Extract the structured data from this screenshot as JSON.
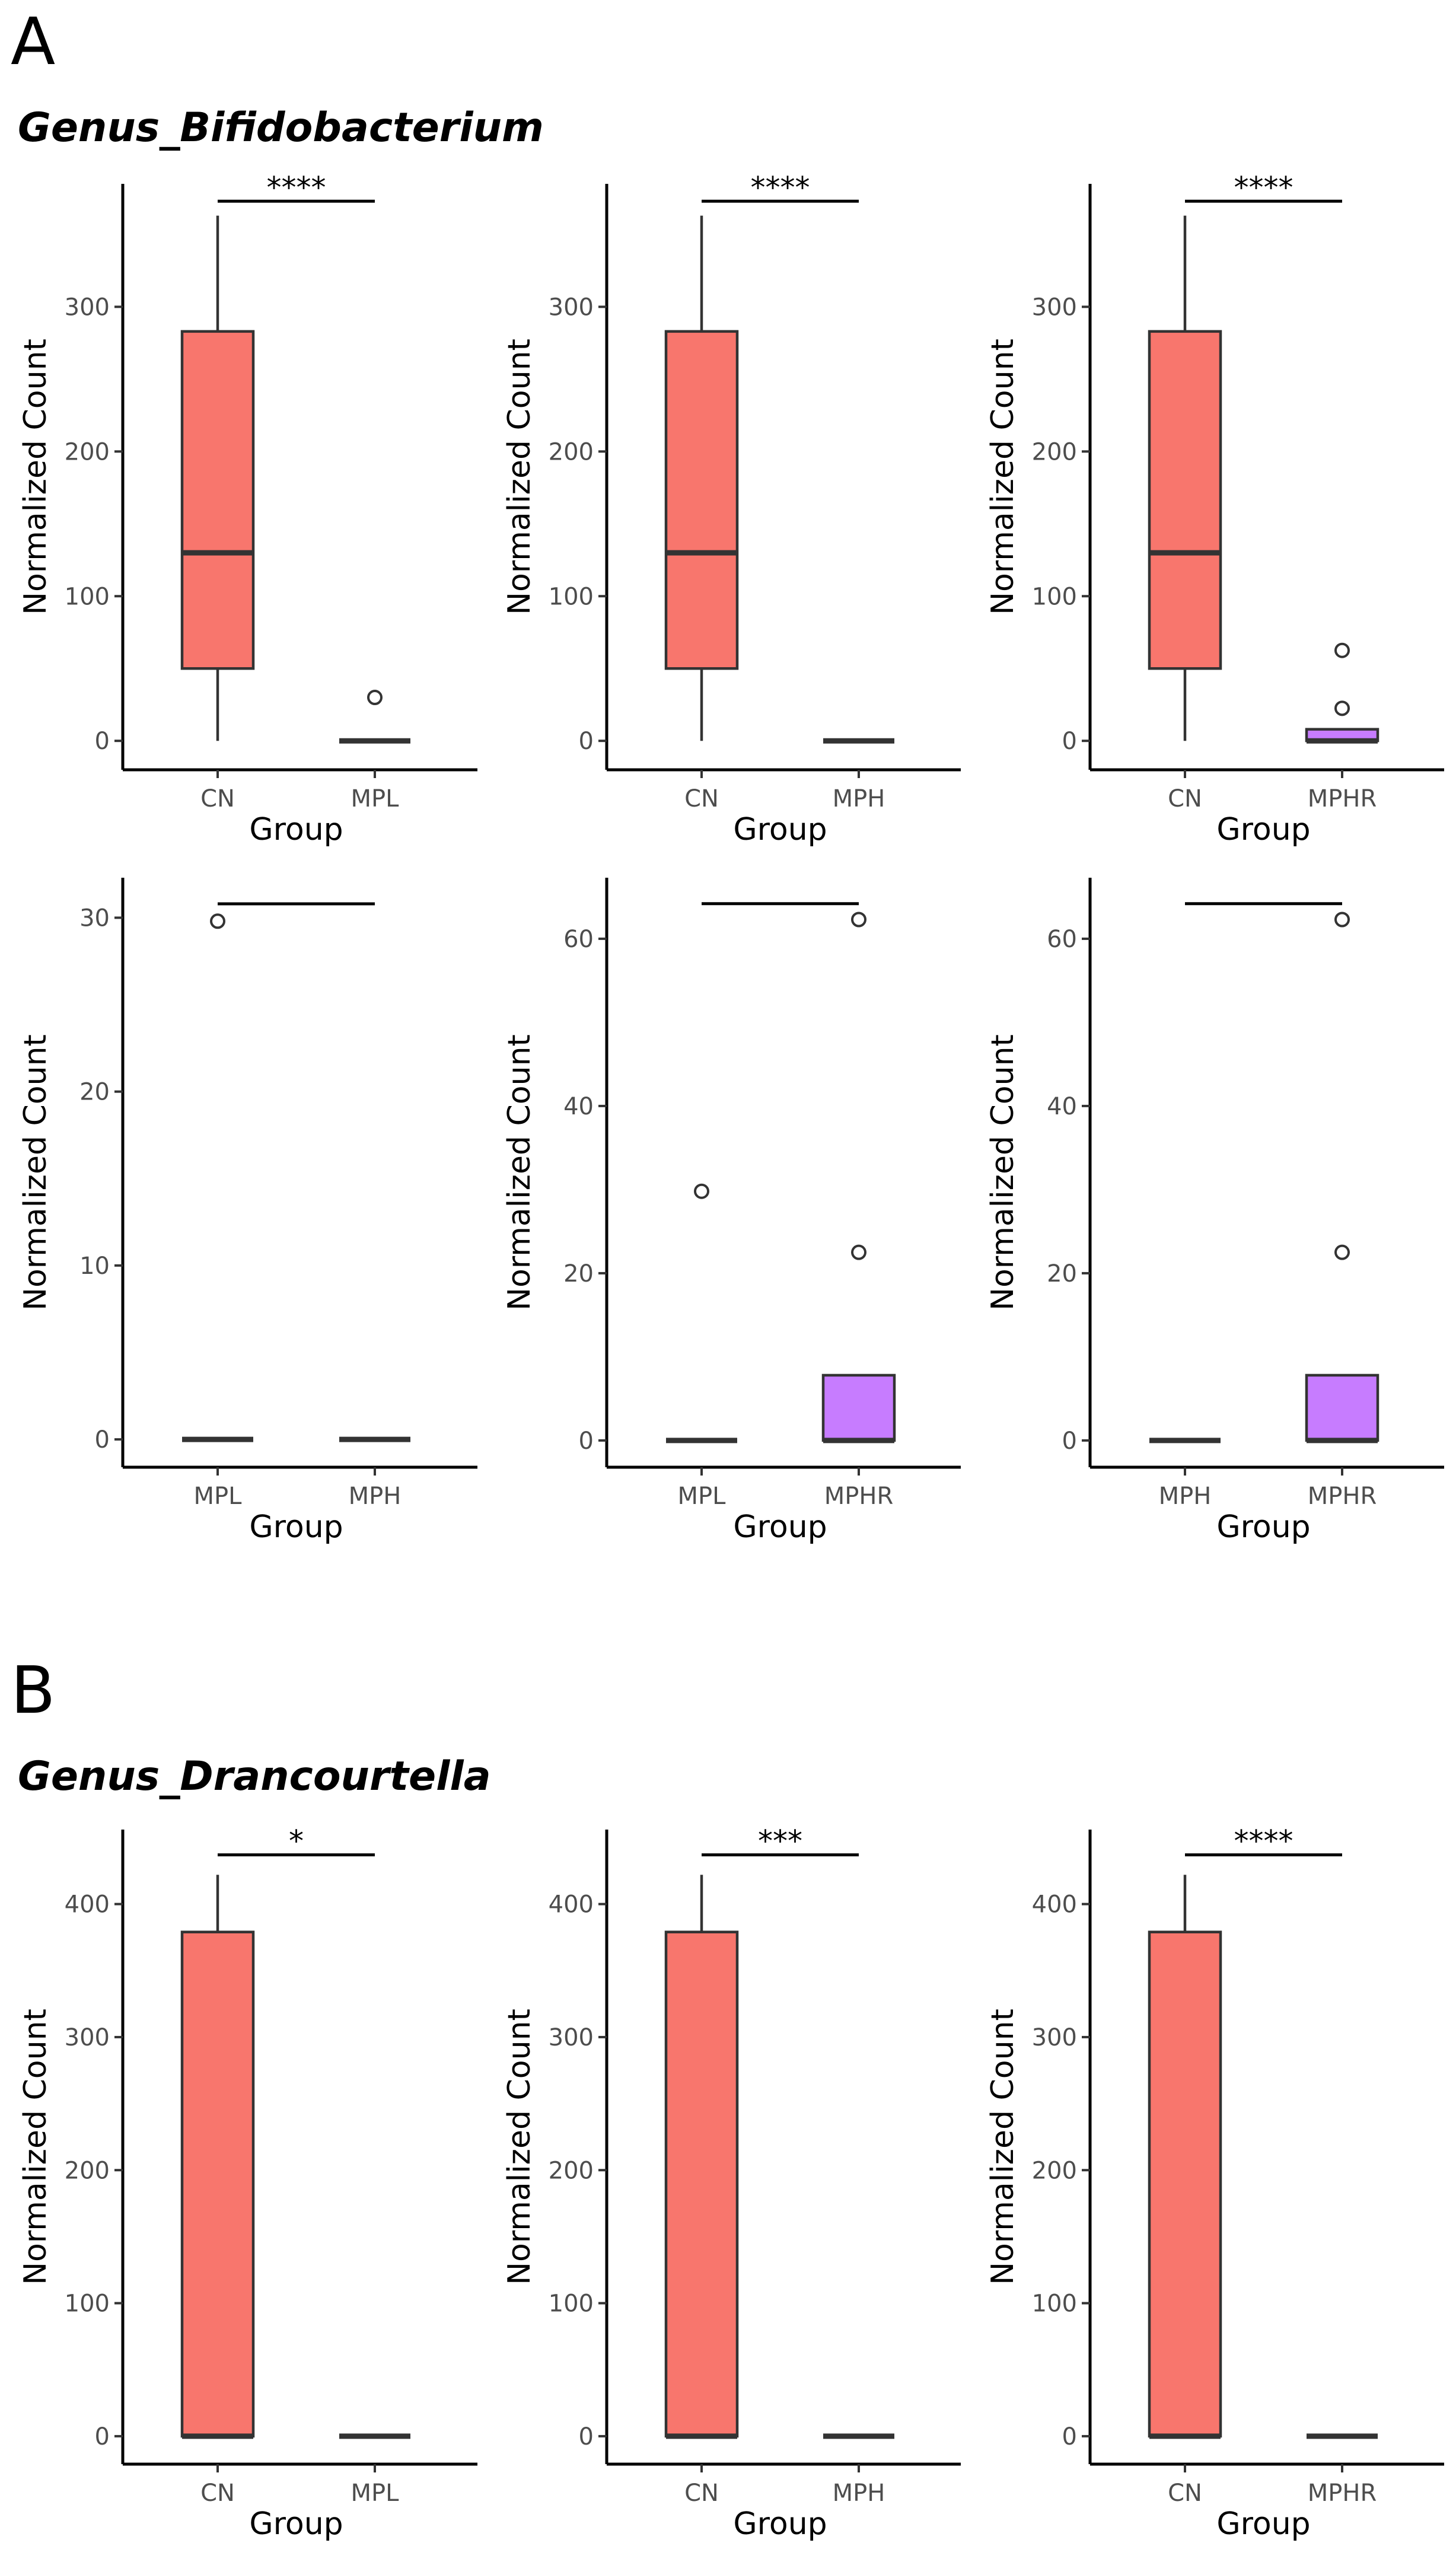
{
  "figure": {
    "sections": [
      {
        "letter": "A",
        "title": "Genus_Bifidobacterium"
      },
      {
        "letter": "B",
        "title": "Genus_Drancourtella"
      }
    ]
  },
  "colors": {
    "CN": "#F8766D",
    "MPL": "#F8766D",
    "MPH": "#F8766D",
    "MPHR": "#C77CFF"
  },
  "chart_data": [
    {
      "type": "box",
      "section": "A",
      "title": "Genus_Bifidobacterium",
      "xlabel": "Group",
      "ylabel": "Normalized Count",
      "categories": [
        "CN",
        "MPL"
      ],
      "ylim": [
        -20,
        385
      ],
      "yticks": [
        0,
        100,
        200,
        300
      ],
      "boxes": [
        {
          "group": "CN",
          "lower_whisker": 0,
          "q1": 50,
          "median": 130,
          "q3": 283,
          "upper_whisker": 363,
          "outliers": []
        },
        {
          "group": "MPL",
          "lower_whisker": 0,
          "q1": 0,
          "median": 0,
          "q3": 0,
          "upper_whisker": 0,
          "outliers": [
            30
          ]
        }
      ],
      "significance": {
        "label": "****",
        "value": 373
      }
    },
    {
      "type": "box",
      "section": "A",
      "title": "Genus_Bifidobacterium",
      "xlabel": "Group",
      "ylabel": "Normalized Count",
      "categories": [
        "CN",
        "MPH"
      ],
      "ylim": [
        -20,
        385
      ],
      "yticks": [
        0,
        100,
        200,
        300
      ],
      "boxes": [
        {
          "group": "CN",
          "lower_whisker": 0,
          "q1": 50,
          "median": 130,
          "q3": 283,
          "upper_whisker": 363,
          "outliers": []
        },
        {
          "group": "MPH",
          "lower_whisker": 0,
          "q1": 0,
          "median": 0,
          "q3": 0,
          "upper_whisker": 0,
          "outliers": []
        }
      ],
      "significance": {
        "label": "****",
        "value": 373
      }
    },
    {
      "type": "box",
      "section": "A",
      "title": "Genus_Bifidobacterium",
      "xlabel": "Group",
      "ylabel": "Normalized Count",
      "categories": [
        "CN",
        "MPHR"
      ],
      "ylim": [
        -20,
        385
      ],
      "yticks": [
        0,
        100,
        200,
        300
      ],
      "boxes": [
        {
          "group": "CN",
          "lower_whisker": 0,
          "q1": 50,
          "median": 130,
          "q3": 283,
          "upper_whisker": 363,
          "outliers": []
        },
        {
          "group": "MPHR",
          "lower_whisker": 0,
          "q1": 0,
          "median": 0,
          "q3": 8,
          "upper_whisker": 8,
          "outliers": [
            22.5,
            62.5
          ]
        }
      ],
      "significance": {
        "label": "****",
        "value": 373
      }
    },
    {
      "type": "box",
      "section": "A",
      "title": "Genus_Bifidobacterium",
      "xlabel": "Group",
      "ylabel": "Normalized Count",
      "categories": [
        "MPL",
        "MPH"
      ],
      "ylim": [
        -1.6,
        32.3
      ],
      "yticks": [
        0,
        10,
        20,
        30
      ],
      "boxes": [
        {
          "group": "MPL",
          "lower_whisker": 0,
          "q1": 0,
          "median": 0,
          "q3": 0,
          "upper_whisker": 0,
          "outliers": [
            29.8
          ]
        },
        {
          "group": "MPH",
          "lower_whisker": 0,
          "q1": 0,
          "median": 0,
          "q3": 0,
          "upper_whisker": 0,
          "outliers": []
        }
      ],
      "significance": {
        "label": "",
        "value": 30.8
      }
    },
    {
      "type": "box",
      "section": "A",
      "title": "Genus_Bifidobacterium",
      "xlabel": "Group",
      "ylabel": "Normalized Count",
      "categories": [
        "MPL",
        "MPHR"
      ],
      "ylim": [
        -3.2,
        67.3
      ],
      "yticks": [
        0,
        20,
        40,
        60
      ],
      "boxes": [
        {
          "group": "MPL",
          "lower_whisker": 0,
          "q1": 0,
          "median": 0,
          "q3": 0,
          "upper_whisker": 0,
          "outliers": [
            29.8
          ]
        },
        {
          "group": "MPHR",
          "lower_whisker": 0,
          "q1": 0,
          "median": 0,
          "q3": 7.8,
          "upper_whisker": 7.8,
          "outliers": [
            22.5,
            62.3
          ]
        }
      ],
      "significance": {
        "label": "",
        "value": 64.2
      }
    },
    {
      "type": "box",
      "section": "A",
      "title": "Genus_Bifidobacterium",
      "xlabel": "Group",
      "ylabel": "Normalized Count",
      "categories": [
        "MPH",
        "MPHR"
      ],
      "ylim": [
        -3.2,
        67.3
      ],
      "yticks": [
        0,
        20,
        40,
        60
      ],
      "boxes": [
        {
          "group": "MPH",
          "lower_whisker": 0,
          "q1": 0,
          "median": 0,
          "q3": 0,
          "upper_whisker": 0,
          "outliers": []
        },
        {
          "group": "MPHR",
          "lower_whisker": 0,
          "q1": 0,
          "median": 0,
          "q3": 7.8,
          "upper_whisker": 7.8,
          "outliers": [
            22.5,
            62.3
          ]
        }
      ],
      "significance": {
        "label": "",
        "value": 64.2
      }
    },
    {
      "type": "box",
      "section": "B",
      "title": "Genus_Drancourtella",
      "xlabel": "Group",
      "ylabel": "Normalized Count",
      "categories": [
        "CN",
        "MPL"
      ],
      "ylim": [
        -21,
        456
      ],
      "yticks": [
        0,
        100,
        200,
        300,
        400
      ],
      "boxes": [
        {
          "group": "CN",
          "lower_whisker": 0,
          "q1": 0,
          "median": 0,
          "q3": 379,
          "upper_whisker": 422,
          "outliers": []
        },
        {
          "group": "MPL",
          "lower_whisker": 0,
          "q1": 0,
          "median": 0,
          "q3": 0,
          "upper_whisker": 0,
          "outliers": []
        }
      ],
      "significance": {
        "label": "*",
        "value": 437
      }
    },
    {
      "type": "box",
      "section": "B",
      "title": "Genus_Drancourtella",
      "xlabel": "Group",
      "ylabel": "Normalized Count",
      "categories": [
        "CN",
        "MPH"
      ],
      "ylim": [
        -21,
        456
      ],
      "yticks": [
        0,
        100,
        200,
        300,
        400
      ],
      "boxes": [
        {
          "group": "CN",
          "lower_whisker": 0,
          "q1": 0,
          "median": 0,
          "q3": 379,
          "upper_whisker": 422,
          "outliers": []
        },
        {
          "group": "MPH",
          "lower_whisker": 0,
          "q1": 0,
          "median": 0,
          "q3": 0,
          "upper_whisker": 0,
          "outliers": []
        }
      ],
      "significance": {
        "label": "***",
        "value": 437
      }
    },
    {
      "type": "box",
      "section": "B",
      "title": "Genus_Drancourtella",
      "xlabel": "Group",
      "ylabel": "Normalized Count",
      "categories": [
        "CN",
        "MPHR"
      ],
      "ylim": [
        -21,
        456
      ],
      "yticks": [
        0,
        100,
        200,
        300,
        400
      ],
      "boxes": [
        {
          "group": "CN",
          "lower_whisker": 0,
          "q1": 0,
          "median": 0,
          "q3": 379,
          "upper_whisker": 422,
          "outliers": []
        },
        {
          "group": "MPHR",
          "lower_whisker": 0,
          "q1": 0,
          "median": 0,
          "q3": 0,
          "upper_whisker": 0,
          "outliers": []
        }
      ],
      "significance": {
        "label": "****",
        "value": 437
      }
    }
  ]
}
